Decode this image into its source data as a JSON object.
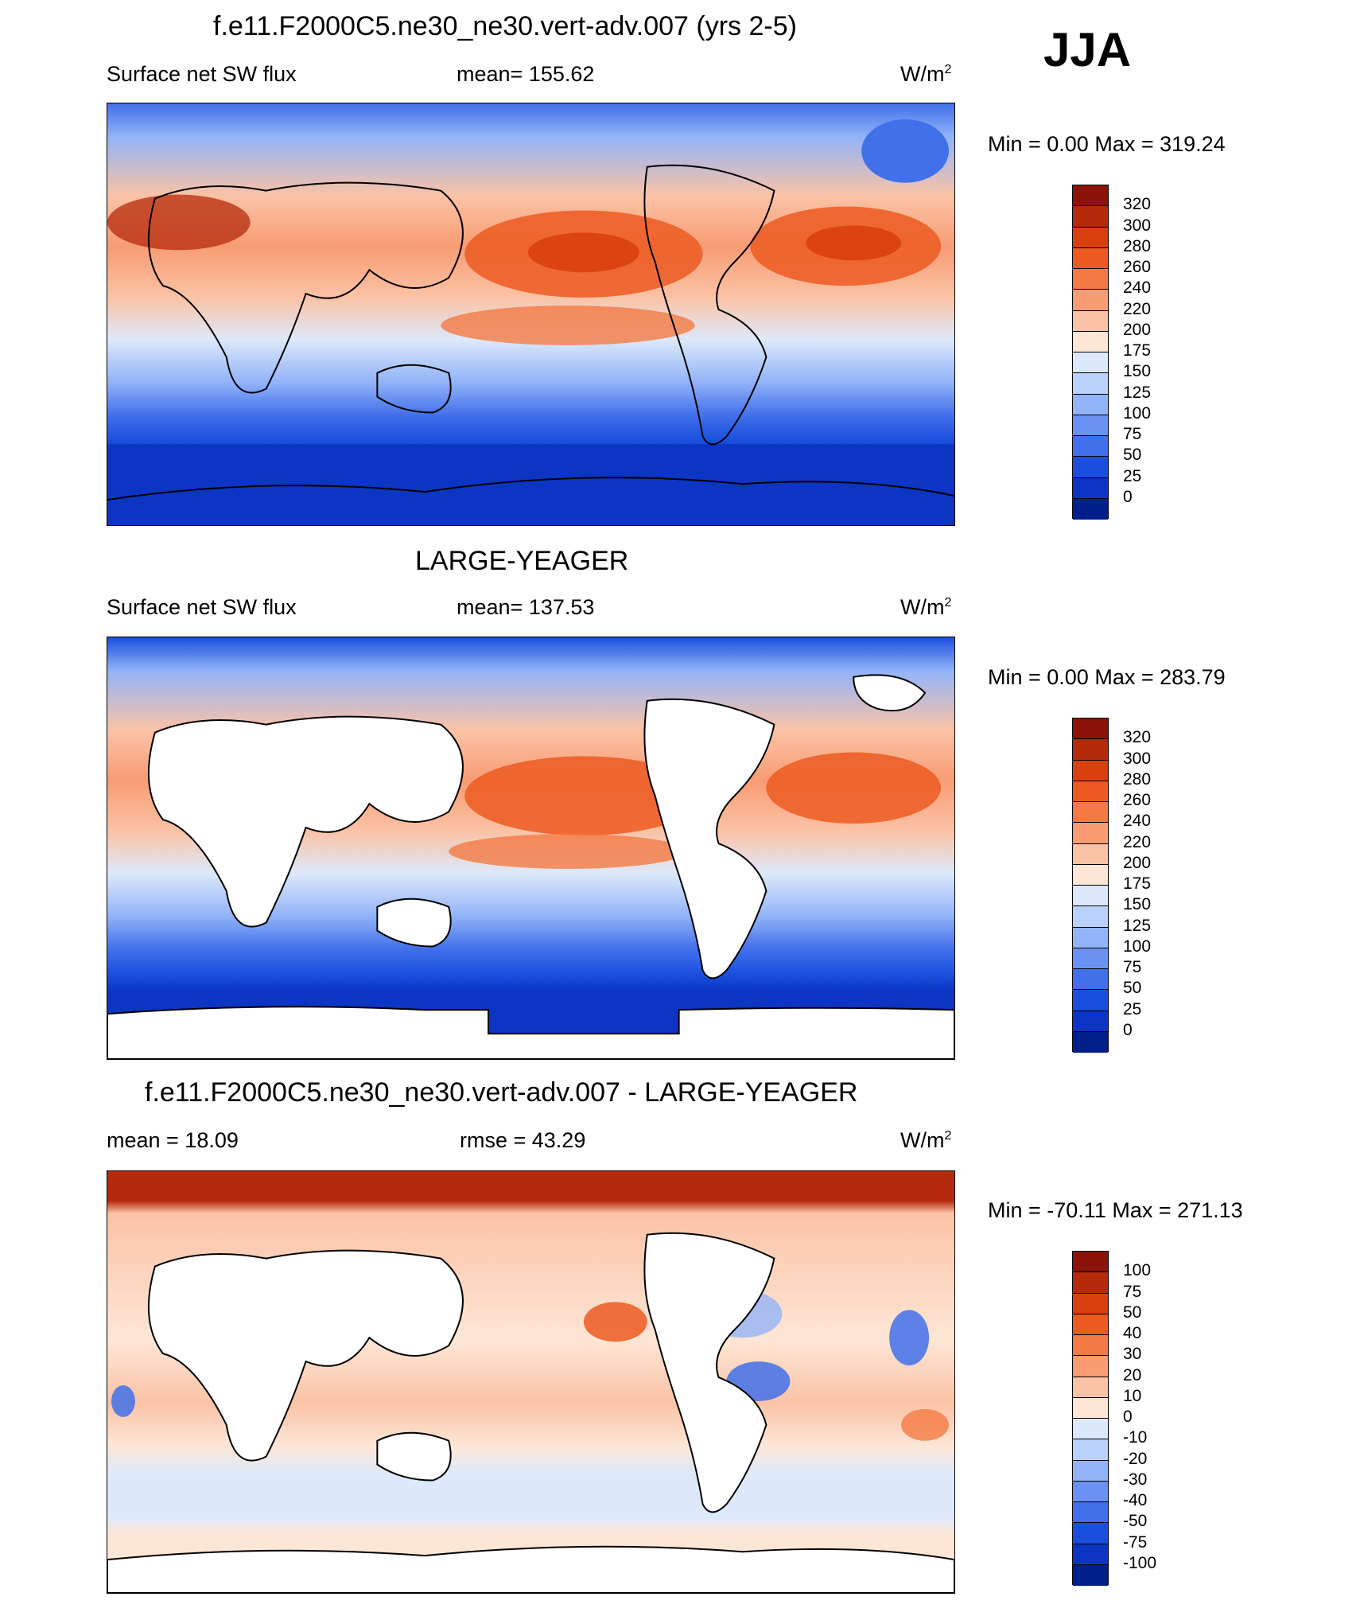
{
  "season": "JJA",
  "units_base": "W/m",
  "units_sup": "2",
  "panels": [
    {
      "title": "f.e11.F2000C5.ne30_ne30.vert-adv.007 (yrs 2-5)",
      "left_label": "Surface net SW flux",
      "center_label": "mean= 155.62",
      "minmax": "Min =   0.00 Max = 319.24",
      "colorbar": [
        "320",
        "300",
        "280",
        "260",
        "240",
        "220",
        "200",
        "175",
        "150",
        "125",
        "100",
        "75",
        "50",
        "25",
        "0"
      ]
    },
    {
      "title": "LARGE-YEAGER",
      "left_label": "Surface net SW flux",
      "center_label": "mean= 137.53",
      "minmax": "Min =   0.00 Max = 283.79",
      "colorbar": [
        "320",
        "300",
        "280",
        "260",
        "240",
        "220",
        "200",
        "175",
        "150",
        "125",
        "100",
        "75",
        "50",
        "25",
        "0"
      ]
    },
    {
      "title": "f.e11.F2000C5.ne30_ne30.vert-adv.007 - LARGE-YEAGER",
      "left_label": "mean =  18.09",
      "center_label": "rmse =  43.29",
      "minmax": "Min = -70.11 Max = 271.13",
      "colorbar": [
        "100",
        "75",
        "50",
        "40",
        "30",
        "20",
        "10",
        "0",
        "-10",
        "-20",
        "-30",
        "-40",
        "-50",
        "-75",
        "-100"
      ]
    }
  ],
  "colors": {
    "abs_scale": [
      "#8c1308",
      "#b42a0a",
      "#d8400f",
      "#ec5a22",
      "#f47a45",
      "#f89c73",
      "#fbc3a6",
      "#fde6d6",
      "#dde9fb",
      "#bad1fb",
      "#93b4f8",
      "#6b92f2",
      "#4170ea",
      "#1a4fde",
      "#0b35c2",
      "#001f88"
    ],
    "diff_scale": [
      "#8c1308",
      "#b42a0a",
      "#d8400f",
      "#ec5a22",
      "#f47a45",
      "#f89c73",
      "#fbc3a6",
      "#fde6d6",
      "#dde9fb",
      "#bad1fb",
      "#93b4f8",
      "#6b92f2",
      "#4170ea",
      "#1a4fde",
      "#0b35c2",
      "#001f88"
    ],
    "land": "#ffffff",
    "coast": "#000000"
  }
}
